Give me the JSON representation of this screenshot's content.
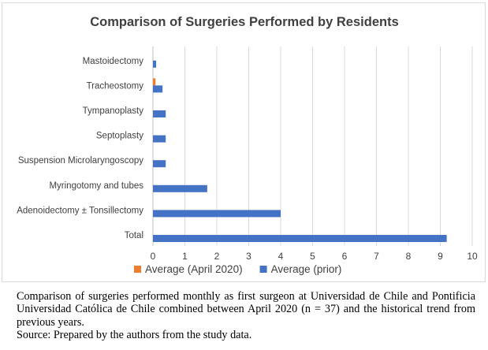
{
  "chart_data": {
    "type": "bar",
    "orientation": "horizontal",
    "title": "Comparison of Surgeries Performed by Residents",
    "xlabel": "",
    "ylabel": "",
    "categories": [
      "Mastoidectomy",
      "Tracheostomy",
      "Tympanoplasty",
      "Septoplasty",
      "Suspension Microlaryngoscopy",
      "Myringotomy and tubes",
      "Adenoidectomy ± Tonsillectomy",
      "Total"
    ],
    "series": [
      {
        "name": "Average (April 2020)",
        "color": "#ed7d31",
        "values": [
          0,
          0.08,
          0,
          0,
          0,
          0,
          0,
          0
        ]
      },
      {
        "name": "Average (prior)",
        "color": "#4472c4",
        "values": [
          0.1,
          0.3,
          0.4,
          0.4,
          0.4,
          1.7,
          4.0,
          9.2
        ]
      }
    ],
    "xlim": [
      0,
      10
    ],
    "xticks": [
      "0",
      "1",
      "2",
      "3",
      "4",
      "5",
      "6",
      "7",
      "8",
      "9",
      "10"
    ],
    "grid": true,
    "legend_position": "bottom"
  },
  "caption": {
    "text": "Comparison of surgeries performed monthly as first surgeon at Universidad de Chile and Pontificia Universidad Católica de Chile combined between April 2020 (n = 37) and the historical trend from previous years.",
    "source": "Source: Prepared by the authors from the study data."
  }
}
